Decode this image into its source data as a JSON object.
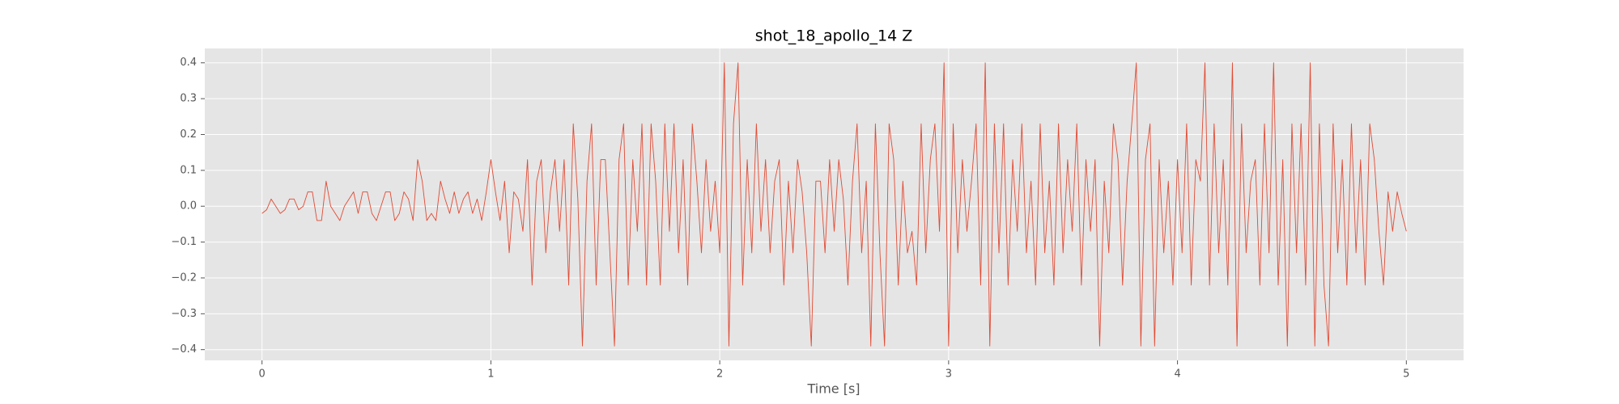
{
  "chart_data": {
    "type": "line",
    "title": "shot_18_apollo_14 Z",
    "xlabel": "Time [s]",
    "color": "#e24a33",
    "grid": true,
    "xlim": [
      -0.25,
      5.25
    ],
    "ylim": [
      -0.43,
      0.44
    ],
    "xticks": [
      0,
      1,
      2,
      3,
      4,
      5
    ],
    "yticks": [
      {
        "value": -0.4,
        "label": "−0.4"
      },
      {
        "value": -0.3,
        "label": "−0.3"
      },
      {
        "value": -0.2,
        "label": "−0.2"
      },
      {
        "value": -0.1,
        "label": "−0.1"
      },
      {
        "value": 0,
        "label": "0.0"
      },
      0.1,
      0.2,
      0.3,
      0.4
    ],
    "x": [
      0,
      0.02,
      0.04,
      0.06,
      0.08,
      0.1,
      0.12,
      0.14,
      0.16,
      0.18,
      0.2,
      0.22,
      0.24,
      0.26,
      0.28,
      0.3,
      0.32,
      0.34,
      0.36,
      0.38,
      0.4,
      0.42,
      0.44,
      0.46,
      0.48,
      0.5,
      0.52,
      0.54,
      0.56,
      0.58,
      0.6,
      0.62,
      0.64,
      0.66,
      0.68,
      0.7,
      0.72,
      0.74,
      0.76,
      0.78,
      0.8,
      0.82,
      0.84,
      0.86,
      0.88,
      0.9,
      0.92,
      0.94,
      0.96,
      0.98,
      1,
      1.02,
      1.04,
      1.06,
      1.08,
      1.1,
      1.12,
      1.14,
      1.16,
      1.18,
      1.2,
      1.22,
      1.24,
      1.26,
      1.28,
      1.3,
      1.32,
      1.34,
      1.36,
      1.38,
      1.4,
      1.42,
      1.44,
      1.46,
      1.48,
      1.5,
      1.52,
      1.54,
      1.56,
      1.58,
      1.6,
      1.62,
      1.64,
      1.66,
      1.68,
      1.7,
      1.72,
      1.74,
      1.76,
      1.78,
      1.8,
      1.82,
      1.84,
      1.86,
      1.88,
      1.9,
      1.92,
      1.94,
      1.96,
      1.98,
      2,
      2.02,
      2.04,
      2.06,
      2.08,
      2.1,
      2.12,
      2.14,
      2.16,
      2.18,
      2.2,
      2.22,
      2.24,
      2.26,
      2.28,
      2.3,
      2.32,
      2.34,
      2.36,
      2.38,
      2.4,
      2.42,
      2.44,
      2.46,
      2.48,
      2.5,
      2.52,
      2.54,
      2.56,
      2.58,
      2.6,
      2.62,
      2.64,
      2.66,
      2.68,
      2.7,
      2.72,
      2.74,
      2.76,
      2.78,
      2.8,
      2.82,
      2.84,
      2.86,
      2.88,
      2.9,
      2.92,
      2.94,
      2.96,
      2.98,
      3,
      3.02,
      3.04,
      3.06,
      3.08,
      3.1,
      3.12,
      3.14,
      3.16,
      3.18,
      3.2,
      3.22,
      3.24,
      3.26,
      3.28,
      3.3,
      3.32,
      3.34,
      3.36,
      3.38,
      3.4,
      3.42,
      3.44,
      3.46,
      3.48,
      3.5,
      3.52,
      3.54,
      3.56,
      3.58,
      3.6,
      3.62,
      3.64,
      3.66,
      3.68,
      3.7,
      3.72,
      3.74,
      3.76,
      3.78,
      3.8,
      3.82,
      3.84,
      3.86,
      3.88,
      3.9,
      3.92,
      3.94,
      3.96,
      3.98,
      4,
      4.02,
      4.04,
      4.06,
      4.08,
      4.1,
      4.12,
      4.14,
      4.16,
      4.18,
      4.2,
      4.22,
      4.24,
      4.26,
      4.28,
      4.3,
      4.32,
      4.34,
      4.36,
      4.38,
      4.4,
      4.42,
      4.44,
      4.46,
      4.48,
      4.5,
      4.52,
      4.54,
      4.56,
      4.58,
      4.6,
      4.62,
      4.64,
      4.66,
      4.68,
      4.7,
      4.72,
      4.74,
      4.76,
      4.78,
      4.8,
      4.82,
      4.84,
      4.86,
      4.88,
      4.9,
      4.92,
      4.94,
      4.96,
      4.98,
      5
    ],
    "values": [
      -0.02,
      -0.01,
      0.02,
      0,
      -0.02,
      -0.01,
      0.02,
      0.02,
      -0.01,
      0,
      0.04,
      0.04,
      -0.04,
      -0.04,
      0.07,
      0,
      -0.02,
      -0.04,
      0,
      0.02,
      0.04,
      -0.02,
      0.04,
      0.04,
      -0.02,
      -0.04,
      0,
      0.04,
      0.04,
      -0.04,
      -0.02,
      0.04,
      0.02,
      -0.04,
      0.13,
      0.07,
      -0.04,
      -0.02,
      -0.04,
      0.07,
      0.02,
      -0.02,
      0.04,
      -0.02,
      0.02,
      0.04,
      -0.02,
      0.02,
      -0.04,
      0.04,
      0.13,
      0.04,
      -0.04,
      0.07,
      -0.13,
      0.04,
      0.02,
      -0.07,
      0.13,
      -0.22,
      0.07,
      0.13,
      -0.13,
      0.04,
      0.13,
      -0.07,
      0.13,
      -0.22,
      0.23,
      0.02,
      -0.39,
      0.07,
      0.23,
      -0.22,
      0.13,
      0.13,
      -0.13,
      -0.39,
      0.13,
      0.23,
      -0.22,
      0.13,
      -0.07,
      0.23,
      -0.22,
      0.23,
      0.07,
      -0.22,
      0.23,
      -0.07,
      0.23,
      -0.13,
      0.13,
      -0.22,
      0.23,
      0.07,
      -0.13,
      0.13,
      -0.07,
      0.07,
      -0.13,
      0.4,
      -0.39,
      0.23,
      0.4,
      -0.22,
      0.13,
      -0.13,
      0.23,
      -0.07,
      0.13,
      -0.13,
      0.07,
      0.13,
      -0.22,
      0.07,
      -0.13,
      0.13,
      0.04,
      -0.13,
      -0.39,
      0.07,
      0.07,
      -0.13,
      0.13,
      -0.07,
      0.13,
      0.02,
      -0.22,
      0.07,
      0.23,
      -0.13,
      0.07,
      -0.39,
      0.23,
      -0.13,
      -0.39,
      0.23,
      0.13,
      -0.22,
      0.07,
      -0.13,
      -0.07,
      -0.22,
      0.23,
      -0.13,
      0.13,
      0.23,
      -0.07,
      0.4,
      -0.39,
      0.23,
      -0.13,
      0.13,
      -0.07,
      0.07,
      0.23,
      -0.22,
      0.4,
      -0.39,
      0.23,
      -0.13,
      0.23,
      -0.22,
      0.13,
      -0.07,
      0.23,
      -0.13,
      0.07,
      -0.22,
      0.23,
      -0.13,
      0.07,
      -0.22,
      0.23,
      -0.13,
      0.13,
      -0.07,
      0.23,
      -0.22,
      0.13,
      -0.07,
      0.13,
      -0.39,
      0.07,
      -0.13,
      0.23,
      0.13,
      -0.22,
      0.07,
      0.23,
      0.4,
      -0.39,
      0.13,
      0.23,
      -0.39,
      0.13,
      -0.13,
      0.07,
      -0.22,
      0.13,
      -0.13,
      0.23,
      -0.22,
      0.13,
      0.07,
      0.4,
      -0.22,
      0.23,
      -0.13,
      0.13,
      -0.22,
      0.4,
      -0.39,
      0.23,
      -0.13,
      0.07,
      0.13,
      -0.22,
      0.23,
      -0.13,
      0.4,
      -0.22,
      0.13,
      -0.39,
      0.23,
      -0.13,
      0.23,
      -0.22,
      0.4,
      -0.39,
      0.23,
      -0.22,
      -0.39,
      0.23,
      -0.13,
      0.13,
      -0.22,
      0.23,
      -0.13,
      0.13,
      -0.22,
      0.23,
      0.13,
      -0.07,
      -0.22,
      0.04,
      -0.07,
      0.04,
      -0.02,
      -0.07
    ]
  }
}
